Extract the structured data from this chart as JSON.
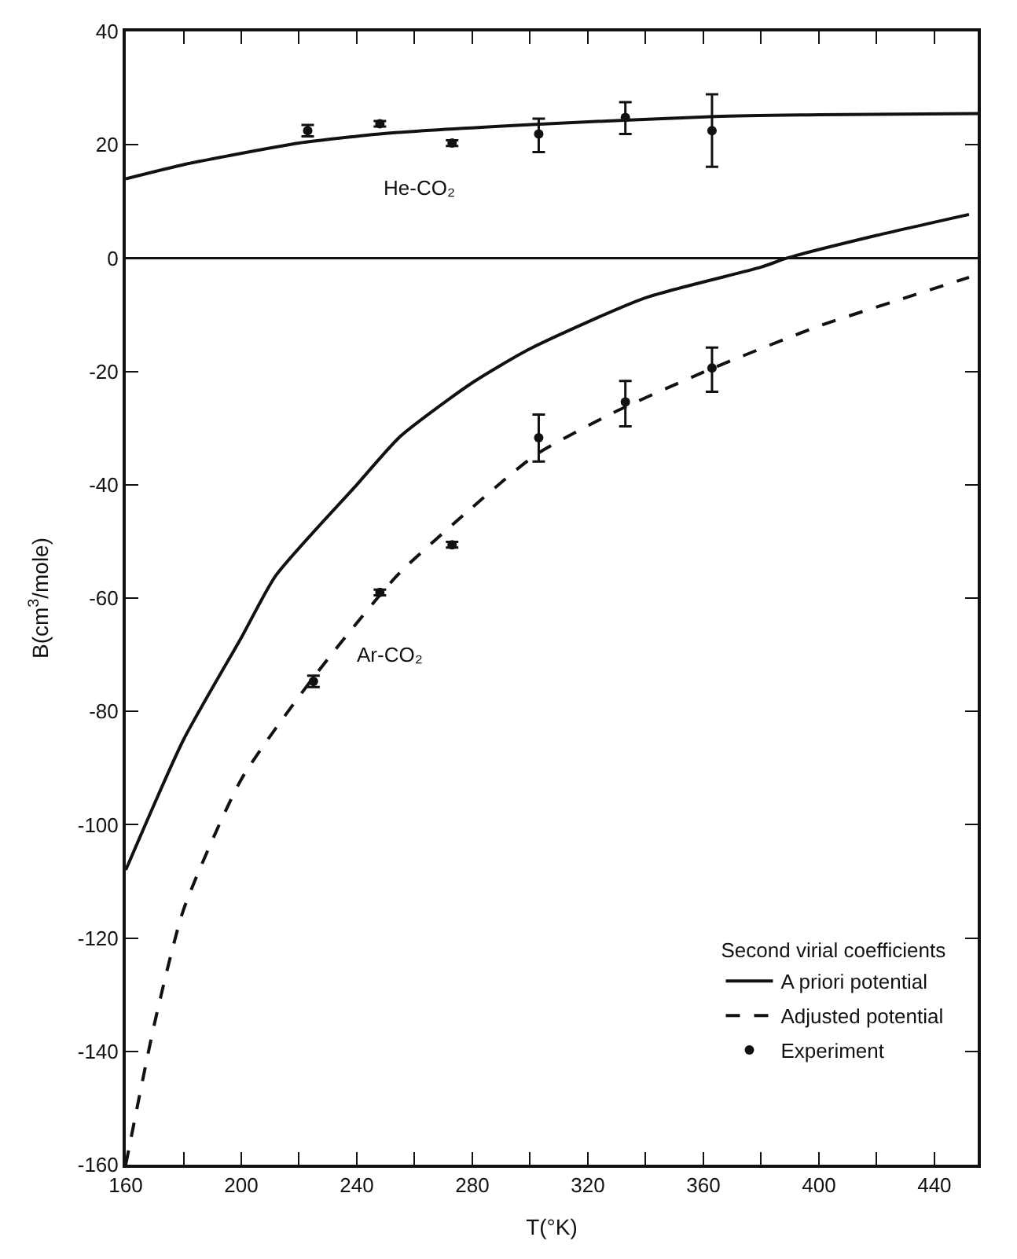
{
  "chart_data": {
    "type": "line",
    "xlabel": "T(°K)",
    "ylabel": "B(cm$^{3}$/mole)",
    "legend_title": "Second virial coefficients",
    "xlim": [
      160,
      455
    ],
    "ylim": [
      -160,
      40
    ],
    "xticks": [
      160,
      {
        "value": 180,
        "label": null
      },
      200,
      {
        "value": 220,
        "label": null
      },
      240,
      {
        "value": 260,
        "label": null
      },
      280,
      {
        "value": 300,
        "label": null
      },
      320,
      {
        "value": 340,
        "label": null
      },
      360,
      {
        "value": 380,
        "label": null
      },
      400,
      {
        "value": 420,
        "label": null
      },
      440
    ],
    "yticks": [
      -160,
      -140,
      -120,
      -100,
      -80,
      -60,
      -40,
      -20,
      0,
      20,
      40
    ],
    "legend": "bottom right",
    "ref_lines": [
      {
        "axis": "y",
        "value": 0,
        "color": "#111111",
        "line_style": "solid"
      }
    ],
    "annotations": [
      "He-CO₂",
      "Ar-CO₂"
    ],
    "series": [
      {
        "name": "A priori potential",
        "color": "#111111",
        "line_style": "solid",
        "marker": "none",
        "x": [
          160,
          180,
          195,
          220,
          250,
          302,
          364,
          400,
          455
        ],
        "values": [
          14,
          16.5,
          18,
          20.3,
          22,
          23.6,
          25,
          25.3,
          25.5
        ]
      },
      {
        "color": "#111111",
        "line_style": "solid",
        "marker": "none",
        "x": [
          160,
          180,
          200,
          212,
          240,
          255,
          280,
          300,
          340,
          380,
          389,
          420,
          452
        ],
        "values": [
          -108,
          -85,
          -67,
          -56,
          -40,
          -31.5,
          -22,
          -16,
          -7,
          -1.6,
          0,
          4,
          7.7
        ]
      },
      {
        "name": "Adjusted potential",
        "color": "#111111",
        "line_style": "dashed",
        "marker": "none",
        "x": [
          160,
          170,
          180,
          200,
          225,
          254,
          280,
          302,
          330,
          362,
          400,
          430,
          452
        ],
        "values": [
          -160,
          -135,
          -115,
          -92,
          -74,
          -56,
          -44,
          -34.7,
          -27,
          -19.7,
          -12,
          -7,
          -3.4
        ]
      },
      {
        "name": "Experiment",
        "type": "scatter",
        "color": "#111111",
        "x": [
          223,
          248,
          273,
          303,
          333,
          363
        ],
        "values": [
          22.5,
          23.7,
          20.3,
          21.9,
          24.8,
          22.5
        ],
        "errors": [
          [
            21.5,
            23.5
          ],
          [
            23.2,
            24.2
          ],
          [
            19.8,
            20.8
          ],
          [
            18.7,
            24.6
          ],
          [
            21.9,
            27.5
          ],
          [
            16.1,
            28.9
          ]
        ]
      },
      {
        "type": "scatter",
        "color": "#111111",
        "x": [
          225,
          248,
          273,
          303,
          333,
          363
        ],
        "values": [
          -74.7,
          -59,
          -50.6,
          -31.7,
          -25.4,
          -19.4
        ],
        "errors": [
          [
            -75.7,
            -73.7
          ],
          [
            -59.5,
            -58.5
          ],
          [
            -51.1,
            -50.1
          ],
          [
            -35.9,
            -27.6
          ],
          [
            -29.7,
            -21.7
          ],
          [
            -23.6,
            -15.8
          ]
        ]
      }
    ]
  }
}
